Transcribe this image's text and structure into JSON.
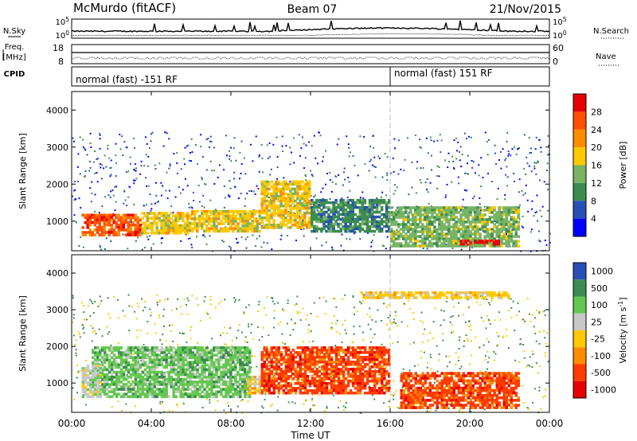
{
  "header": {
    "station": "McMurdo (fitACF)",
    "beam": "Beam 07",
    "date": "21/Nov/2015"
  },
  "top_panels": {
    "nsky_label": "N.Sky",
    "nsearch_label": "N.Search",
    "noise_ticks": [
      "10^5",
      "10^0"
    ],
    "freq_label_line1": "Freq.",
    "freq_label_line2": "[MHz]",
    "freq_ticks": [
      "18",
      "8"
    ],
    "nave_label": "Nave",
    "nave_ticks": [
      "60",
      "0"
    ],
    "cpid_label": "CPID",
    "cpid_left": "normal (fast) -151 RF",
    "cpid_right": "normal (fast) 151 RF"
  },
  "colors": {
    "power": [
      "#0000ff",
      "#2850b4",
      "#3c8c50",
      "#78b464",
      "#ffc800",
      "#ff8c00",
      "#ff5000",
      "#e60000"
    ],
    "velocity": [
      "#2850b4",
      "#3c8c50",
      "#64c850",
      "#c8c8c8",
      "#ffc800",
      "#ff8c00",
      "#ff3c00",
      "#e60000"
    ]
  },
  "chart_data": [
    {
      "type": "heatmap",
      "name": "power",
      "ylabel": "Slant Range [km]",
      "y_ticks": [
        "1000",
        "2000",
        "3000",
        "4000"
      ],
      "ylim": [
        200,
        4500
      ],
      "xlim": [
        0,
        24
      ],
      "colorbar_label": "Power [dB]",
      "colorbar_ticks": [
        "4",
        "8",
        "12",
        "16",
        "20",
        "24",
        "28"
      ],
      "regions": [
        {
          "x": [
            0.5,
            3.5
          ],
          "y": [
            600,
            1200
          ],
          "value": 24
        },
        {
          "x": [
            3.5,
            6
          ],
          "y": [
            650,
            1250
          ],
          "value": 16
        },
        {
          "x": [
            6,
            9.5
          ],
          "y": [
            700,
            1300
          ],
          "value": 16
        },
        {
          "x": [
            9.5,
            12
          ],
          "y": [
            800,
            2100
          ],
          "value": 16
        },
        {
          "x": [
            12,
            16
          ],
          "y": [
            700,
            1600
          ],
          "value": 8
        },
        {
          "x": [
            16,
            22.5
          ],
          "y": [
            300,
            1400
          ],
          "value": 12
        },
        {
          "x": [
            19.5,
            21.5
          ],
          "y": [
            350,
            500
          ],
          "value": 28
        }
      ]
    },
    {
      "type": "heatmap",
      "name": "velocity",
      "ylabel": "Slant Range [km]",
      "y_ticks": [
        "1000",
        "2000",
        "3000",
        "4000"
      ],
      "ylim": [
        200,
        4500
      ],
      "xlim": [
        0,
        24
      ],
      "xlabel": "Time UT",
      "x_ticks": [
        "00:00",
        "04:00",
        "08:00",
        "12:00",
        "16:00",
        "20:00",
        "00:00"
      ],
      "colorbar_label": "Velocity [m s^-1]",
      "colorbar_ticks": [
        "1000",
        "500",
        "100",
        "25",
        "-25",
        "-100",
        "-500",
        "-1000"
      ],
      "regions": [
        {
          "x": [
            1,
            9
          ],
          "y": [
            600,
            2000
          ],
          "value": 300
        },
        {
          "x": [
            0.5,
            1.5
          ],
          "y": [
            600,
            1500
          ],
          "value": 50
        },
        {
          "x": [
            8.8,
            9.5
          ],
          "y": [
            700,
            1200
          ],
          "value": 0
        },
        {
          "x": [
            9.5,
            16
          ],
          "y": [
            700,
            2000
          ],
          "value": -150
        },
        {
          "x": [
            16.5,
            22.5
          ],
          "y": [
            300,
            1300
          ],
          "value": -200
        },
        {
          "x": [
            14.5,
            22
          ],
          "y": [
            3300,
            3500
          ],
          "value": 0
        }
      ]
    }
  ]
}
